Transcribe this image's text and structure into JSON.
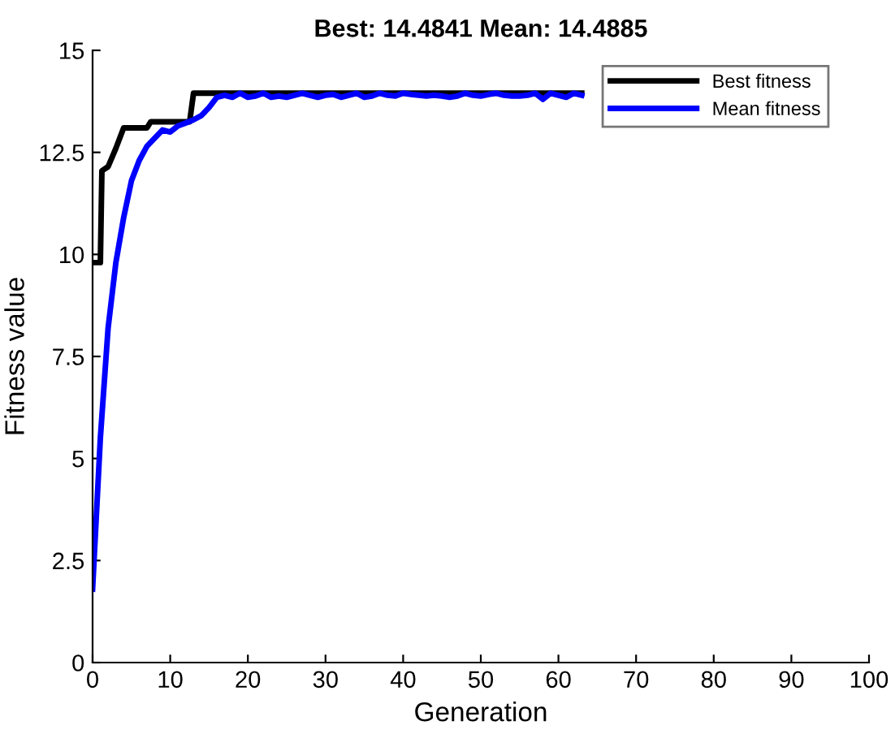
{
  "chart_data": {
    "type": "line",
    "title": "Best: 14.4841 Mean: 14.4885",
    "xlabel": "Generation",
    "ylabel": "Fitness value",
    "xlim": [
      0,
      100
    ],
    "xticks": [
      0,
      10,
      20,
      30,
      40,
      50,
      60,
      70,
      80,
      90,
      100
    ],
    "ylim": [
      0,
      15
    ],
    "yticks": [
      0,
      2.5,
      5,
      7.5,
      10,
      12.5,
      15
    ],
    "grid": false,
    "legend": "top right",
    "marker": "none",
    "line_style": "solid",
    "series": [
      {
        "name": "Best fitness",
        "color": "#000000",
        "x": [
          0,
          1,
          1.2,
          2,
          3,
          4,
          5,
          6,
          7,
          7.5,
          8,
          12,
          12.5,
          13,
          20,
          30,
          40,
          50,
          60,
          63
        ],
        "values": [
          9.8,
          9.8,
          12.05,
          12.15,
          12.6,
          13.1,
          13.1,
          13.1,
          13.1,
          13.25,
          13.25,
          13.25,
          13.25,
          13.95,
          13.95,
          13.95,
          13.95,
          13.95,
          13.95,
          13.95
        ]
      },
      {
        "name": "Mean fitness",
        "color": "#0000ff",
        "x": [
          0,
          1,
          2,
          3,
          4,
          5,
          6,
          7,
          8,
          9,
          10,
          11,
          12,
          13,
          14,
          15,
          16,
          17,
          18,
          19,
          20,
          21,
          22,
          23,
          24,
          25,
          26,
          27,
          28,
          29,
          30,
          31,
          32,
          33,
          34,
          35,
          36,
          37,
          38,
          39,
          40,
          41,
          42,
          43,
          44,
          45,
          46,
          47,
          48,
          49,
          50,
          51,
          52,
          53,
          54,
          55,
          56,
          57,
          58,
          59,
          60,
          61,
          62,
          63
        ],
        "values": [
          1.8,
          5.5,
          8.2,
          9.8,
          10.9,
          11.8,
          12.3,
          12.65,
          12.85,
          13.05,
          13.0,
          13.15,
          13.22,
          13.3,
          13.4,
          13.6,
          13.85,
          13.9,
          13.85,
          13.95,
          13.85,
          13.88,
          13.95,
          13.85,
          13.88,
          13.85,
          13.9,
          13.95,
          13.9,
          13.85,
          13.9,
          13.92,
          13.85,
          13.9,
          13.95,
          13.85,
          13.88,
          13.95,
          13.9,
          13.88,
          13.95,
          13.92,
          13.9,
          13.88,
          13.9,
          13.88,
          13.85,
          13.88,
          13.95,
          13.9,
          13.88,
          13.92,
          13.95,
          13.9,
          13.88,
          13.88,
          13.9,
          13.95,
          13.8,
          13.95,
          13.9,
          13.85,
          13.95,
          13.9
        ]
      }
    ]
  }
}
